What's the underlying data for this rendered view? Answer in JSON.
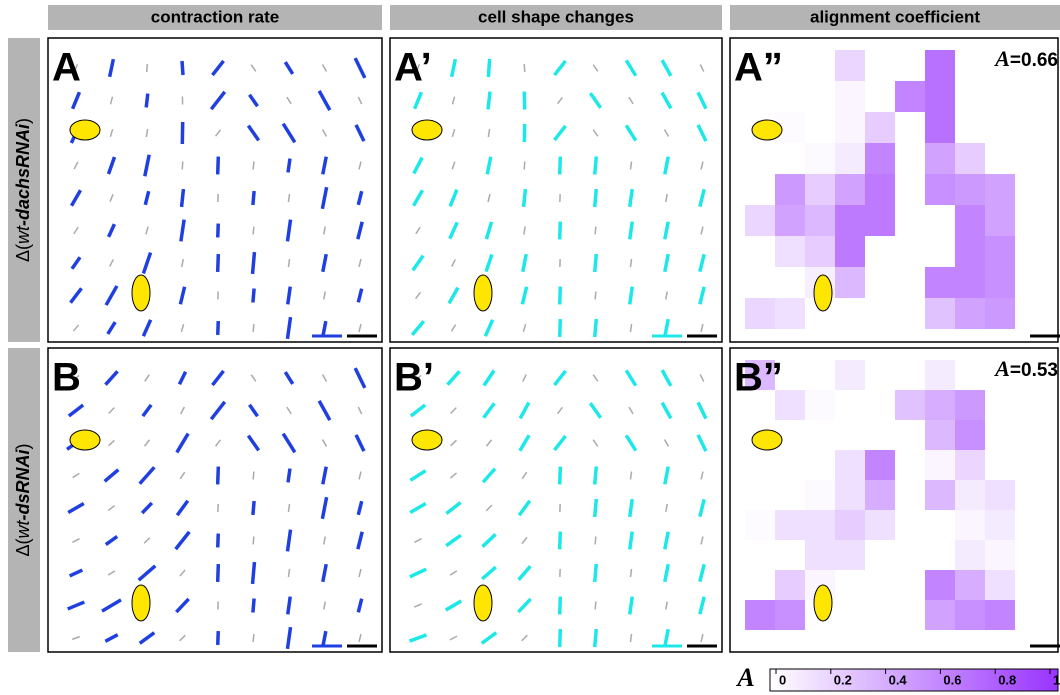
{
  "columns": [
    "contraction rate",
    "cell shape changes",
    "alignment coefficient"
  ],
  "rows": [
    {
      "label": [
        "Δ(",
        "wt",
        "-dachsRNAi",
        ")"
      ]
    },
    {
      "label": [
        "Δ(",
        "wt",
        "-dsRNAi",
        ")"
      ]
    }
  ],
  "panels": [
    [
      "A",
      "A’",
      "A”"
    ],
    [
      "B",
      "B’",
      "B”"
    ]
  ],
  "alignment": [
    {
      "symbol": "A",
      "text": "=0.66",
      "values": [
        [
          null,
          null,
          null,
          0.2,
          null,
          null,
          0.7,
          null,
          null
        ],
        [
          null,
          null,
          null,
          0.05,
          null,
          0.6,
          0.7,
          null,
          null
        ],
        [
          null,
          0.02,
          null,
          0.05,
          0.25,
          null,
          0.7,
          null,
          null
        ],
        [
          null,
          null,
          0.03,
          0.1,
          0.6,
          null,
          0.45,
          0.25,
          null
        ],
        [
          null,
          0.5,
          0.25,
          0.45,
          0.65,
          null,
          0.55,
          0.5,
          0.45
        ],
        [
          0.2,
          0.45,
          0.35,
          0.65,
          0.65,
          null,
          null,
          0.6,
          0.45
        ],
        [
          null,
          0.15,
          0.25,
          0.65,
          null,
          null,
          null,
          0.6,
          0.55
        ],
        [
          null,
          null,
          0.08,
          0.35,
          null,
          null,
          0.6,
          0.6,
          0.55
        ],
        [
          0.2,
          0.15,
          null,
          null,
          null,
          null,
          0.3,
          0.45,
          0.5
        ]
      ]
    },
    {
      "symbol": "A",
      "text": "=0.53",
      "values": [
        [
          0.35,
          null,
          null,
          0.1,
          null,
          null,
          0.1,
          null,
          null
        ],
        [
          null,
          0.15,
          0.03,
          null,
          null,
          0.3,
          0.4,
          0.5,
          null
        ],
        [
          null,
          null,
          null,
          null,
          null,
          null,
          0.35,
          0.55,
          null
        ],
        [
          null,
          null,
          null,
          0.15,
          0.6,
          null,
          0.05,
          0.2,
          null
        ],
        [
          null,
          null,
          0.03,
          0.15,
          0.4,
          null,
          0.35,
          0.1,
          0.15
        ],
        [
          0.02,
          0.15,
          0.15,
          0.25,
          0.15,
          null,
          null,
          0.05,
          0.1
        ],
        [
          null,
          null,
          0.15,
          0.15,
          null,
          null,
          null,
          0.1,
          0.05
        ],
        [
          null,
          0.25,
          0.05,
          null,
          null,
          null,
          0.6,
          0.4,
          0.15
        ],
        [
          0.6,
          0.55,
          null,
          null,
          null,
          null,
          0.45,
          0.55,
          0.6
        ]
      ]
    }
  ],
  "colorbar": {
    "symbol": "A",
    "lim": [
      0,
      1
    ],
    "ticks": [
      0,
      0.2,
      0.4,
      0.6,
      0.8,
      1
    ],
    "color": "#9933ff"
  }
}
